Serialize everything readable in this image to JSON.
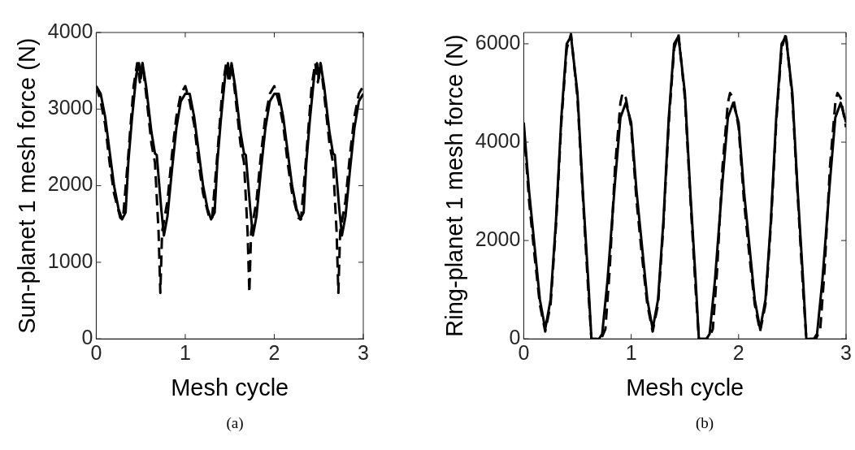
{
  "chart_data": [
    {
      "type": "line",
      "xlabel": "Mesh cycle",
      "ylabel": "Sun-planet 1 mesh force (N)",
      "annotations": [
        "(a)"
      ],
      "xlim": [
        0,
        3
      ],
      "xticks": [
        0,
        1,
        2,
        3
      ],
      "ylim": [
        0,
        4000
      ],
      "yticks": [
        0,
        1000,
        2000,
        3000,
        4000
      ],
      "series": [
        {
          "color": "#000000",
          "line_style": "solid",
          "x": [
            0,
            0.05,
            0.1,
            0.15,
            0.2,
            0.25,
            0.29,
            0.33,
            0.36,
            0.4,
            0.45,
            0.48,
            0.5,
            0.52,
            0.56,
            0.62,
            0.66,
            0.68,
            0.73,
            0.76,
            0.8,
            0.85,
            0.9,
            0.95,
            1,
            1.05,
            1.1,
            1.15,
            1.2,
            1.25,
            1.29,
            1.33,
            1.36,
            1.4,
            1.45,
            1.48,
            1.5,
            1.52,
            1.56,
            1.62,
            1.66,
            1.68,
            1.73,
            1.76,
            1.8,
            1.85,
            1.9,
            1.95,
            2,
            2.05,
            2.1,
            2.15,
            2.2,
            2.25,
            2.29,
            2.33,
            2.36,
            2.4,
            2.45,
            2.48,
            2.5,
            2.52,
            2.56,
            2.62,
            2.66,
            2.68,
            2.73,
            2.76,
            2.8,
            2.85,
            2.9,
            2.95,
            3
          ],
          "values": [
            3300,
            3200,
            2900,
            2450,
            2000,
            1700,
            1560,
            1650,
            2300,
            2860,
            3450,
            3600,
            3400,
            3600,
            3300,
            2700,
            2420,
            2400,
            1700,
            1350,
            1600,
            2200,
            2750,
            3100,
            3200,
            3200,
            2900,
            2450,
            2000,
            1700,
            1560,
            1650,
            2300,
            2860,
            3450,
            3600,
            3400,
            3600,
            3300,
            2700,
            2420,
            2400,
            1700,
            1350,
            1600,
            2200,
            2750,
            3100,
            3200,
            3200,
            2900,
            2450,
            2000,
            1700,
            1560,
            1650,
            2300,
            2860,
            3450,
            3600,
            3400,
            3600,
            3300,
            2700,
            2420,
            2400,
            1700,
            1350,
            1600,
            2200,
            2750,
            3100,
            3200
          ]
        },
        {
          "color": "#000000",
          "line_style": "dashed",
          "x": [
            0,
            0.05,
            0.1,
            0.15,
            0.2,
            0.27,
            0.3,
            0.36,
            0.42,
            0.46,
            0.49,
            0.52,
            0.56,
            0.62,
            0.66,
            0.7,
            0.72,
            0.74,
            0.8,
            0.85,
            0.9,
            0.95,
            1,
            1.05,
            1.1,
            1.15,
            1.2,
            1.27,
            1.3,
            1.36,
            1.42,
            1.46,
            1.49,
            1.52,
            1.56,
            1.62,
            1.66,
            1.7,
            1.72,
            1.74,
            1.8,
            1.85,
            1.9,
            1.95,
            2,
            2.05,
            2.1,
            2.15,
            2.2,
            2.27,
            2.3,
            2.36,
            2.42,
            2.46,
            2.49,
            2.52,
            2.56,
            2.62,
            2.66,
            2.7,
            2.72,
            2.74,
            2.8,
            2.85,
            2.9,
            2.95,
            3
          ],
          "values": [
            3300,
            3100,
            2800,
            2300,
            1900,
            1580,
            1560,
            2400,
            3300,
            3600,
            3350,
            3600,
            3200,
            2550,
            2300,
            1400,
            600,
            1400,
            1800,
            2400,
            2900,
            3200,
            3300,
            3100,
            2800,
            2300,
            1900,
            1580,
            1560,
            2400,
            3300,
            3600,
            3350,
            3600,
            3200,
            2550,
            2300,
            1400,
            600,
            1400,
            1800,
            2400,
            2900,
            3200,
            3300,
            3100,
            2800,
            2300,
            1900,
            1580,
            1560,
            2400,
            3300,
            3600,
            3350,
            3600,
            3200,
            2550,
            2300,
            1400,
            600,
            1400,
            1800,
            2400,
            2900,
            3200,
            3300
          ]
        }
      ]
    },
    {
      "type": "line",
      "xlabel": "Mesh cycle",
      "ylabel": "Ring-planet 1 mesh force (N)",
      "annotations": [
        "(b)"
      ],
      "xlim": [
        0,
        3
      ],
      "xticks": [
        0,
        1,
        2,
        3
      ],
      "ylim": [
        0,
        6230
      ],
      "yticks": [
        0,
        2000,
        4000,
        6000
      ],
      "series": [
        {
          "color": "#000000",
          "line_style": "solid",
          "x": [
            0,
            0.05,
            0.1,
            0.15,
            0.2,
            0.25,
            0.3,
            0.35,
            0.4,
            0.44,
            0.5,
            0.55,
            0.6,
            0.63,
            0.7,
            0.73,
            0.78,
            0.85,
            0.9,
            0.95,
            1,
            1.05,
            1.1,
            1.15,
            1.2,
            1.25,
            1.3,
            1.35,
            1.4,
            1.44,
            1.5,
            1.55,
            1.6,
            1.63,
            1.7,
            1.73,
            1.78,
            1.85,
            1.9,
            1.95,
            2,
            2.05,
            2.1,
            2.15,
            2.2,
            2.25,
            2.3,
            2.35,
            2.4,
            2.44,
            2.5,
            2.55,
            2.6,
            2.63,
            2.7,
            2.73,
            2.78,
            2.85,
            2.9,
            2.95,
            3
          ],
          "values": [
            4400,
            3000,
            1900,
            800,
            200,
            800,
            2400,
            4500,
            6000,
            6150,
            5000,
            3000,
            1200,
            0,
            0,
            100,
            1200,
            3200,
            4500,
            4800,
            4400,
            3000,
            1900,
            800,
            200,
            800,
            2400,
            4500,
            6000,
            6150,
            5000,
            3000,
            1200,
            0,
            0,
            100,
            1200,
            3200,
            4500,
            4800,
            4400,
            3000,
            1900,
            800,
            200,
            800,
            2400,
            4500,
            6000,
            6150,
            5000,
            3000,
            1200,
            0,
            0,
            100,
            1200,
            3200,
            4500,
            4800,
            4400
          ]
        },
        {
          "color": "#000000",
          "line_style": "dashed",
          "x": [
            0,
            0.05,
            0.1,
            0.15,
            0.2,
            0.25,
            0.3,
            0.35,
            0.4,
            0.44,
            0.5,
            0.55,
            0.6,
            0.63,
            0.72,
            0.76,
            0.8,
            0.85,
            0.9,
            0.92,
            0.95,
            1,
            1.05,
            1.1,
            1.15,
            1.2,
            1.25,
            1.3,
            1.35,
            1.4,
            1.44,
            1.5,
            1.55,
            1.6,
            1.63,
            1.72,
            1.76,
            1.8,
            1.85,
            1.9,
            1.92,
            1.95,
            2,
            2.05,
            2.1,
            2.15,
            2.2,
            2.25,
            2.3,
            2.35,
            2.4,
            2.44,
            2.5,
            2.55,
            2.6,
            2.63,
            2.72,
            2.76,
            2.8,
            2.85,
            2.9,
            2.92,
            2.95,
            3
          ],
          "values": [
            4300,
            2800,
            1700,
            700,
            150,
            700,
            2300,
            4400,
            5900,
            6200,
            4900,
            2900,
            1000,
            0,
            0,
            200,
            1400,
            3500,
            4800,
            5000,
            4900,
            4300,
            2800,
            1700,
            700,
            150,
            700,
            2300,
            4400,
            5900,
            6200,
            4900,
            2900,
            1000,
            0,
            0,
            200,
            1400,
            3500,
            4800,
            5000,
            4900,
            4300,
            2800,
            1700,
            700,
            150,
            700,
            2300,
            4400,
            5900,
            6200,
            4900,
            2900,
            1000,
            0,
            0,
            200,
            1400,
            3500,
            4800,
            5000,
            4900,
            4300
          ]
        }
      ]
    }
  ]
}
